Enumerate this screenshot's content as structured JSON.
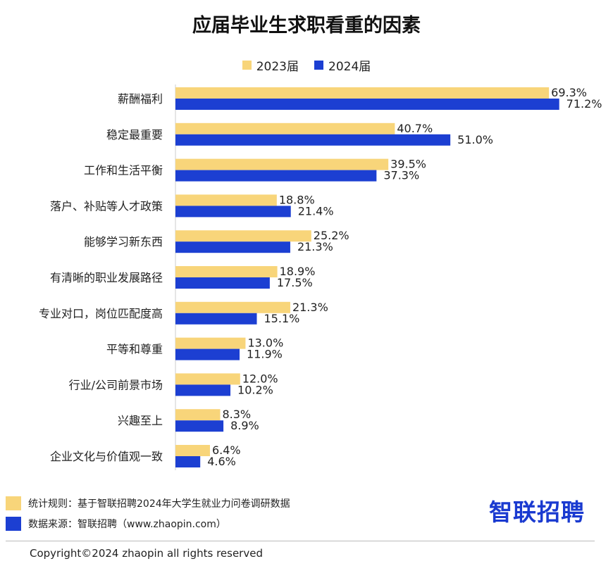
{
  "colors": {
    "s2023": "#F8D57A",
    "s2024": "#1C3FD2"
  },
  "chart_data": {
    "type": "bar",
    "orientation": "horizontal",
    "title": "应届毕业生求职看重的因素",
    "categories": [
      "薪酬福利",
      "稳定最重要",
      "工作和生活平衡",
      "落户、补贴等人才政策",
      "能够学习新东西",
      "有清晰的职业发展路径",
      "专业对口，岗位匹配度高",
      "平等和尊重",
      "行业/公司前景市场",
      "兴趣至上",
      "企业文化与价值观一致"
    ],
    "series": [
      {
        "name": "2023届",
        "values": [
          69.3,
          40.7,
          39.5,
          18.8,
          25.2,
          18.9,
          21.3,
          13.0,
          12.0,
          8.3,
          6.4
        ],
        "labels": [
          "69.3%",
          "40.7%",
          "39.5%",
          "18.8%",
          "25.2%",
          "18.9%",
          "21.3%",
          "13.0%",
          "12.0%",
          "8.3%",
          "6.4%"
        ]
      },
      {
        "name": "2024届",
        "values": [
          71.2,
          51.0,
          37.3,
          21.4,
          21.3,
          17.5,
          15.1,
          11.9,
          10.2,
          8.9,
          4.6
        ],
        "labels": [
          "71.2%",
          "51.0%",
          "37.3%",
          "21.4%",
          "21.3%",
          "17.5%",
          "15.1%",
          "11.9%",
          "10.2%",
          "8.9%",
          "4.6%"
        ]
      }
    ],
    "xlim": [
      0,
      100
    ],
    "grid": false,
    "legend": "top-center"
  },
  "footer": {
    "note1": "统计规则：基于智联招聘2024年大学生就业力问卷调研数据",
    "note2": "数据来源：智联招聘（www.zhaopin.com）",
    "logo": "智联招聘",
    "copyright": "Copyright©2024 zhaopin all rights reserved"
  }
}
